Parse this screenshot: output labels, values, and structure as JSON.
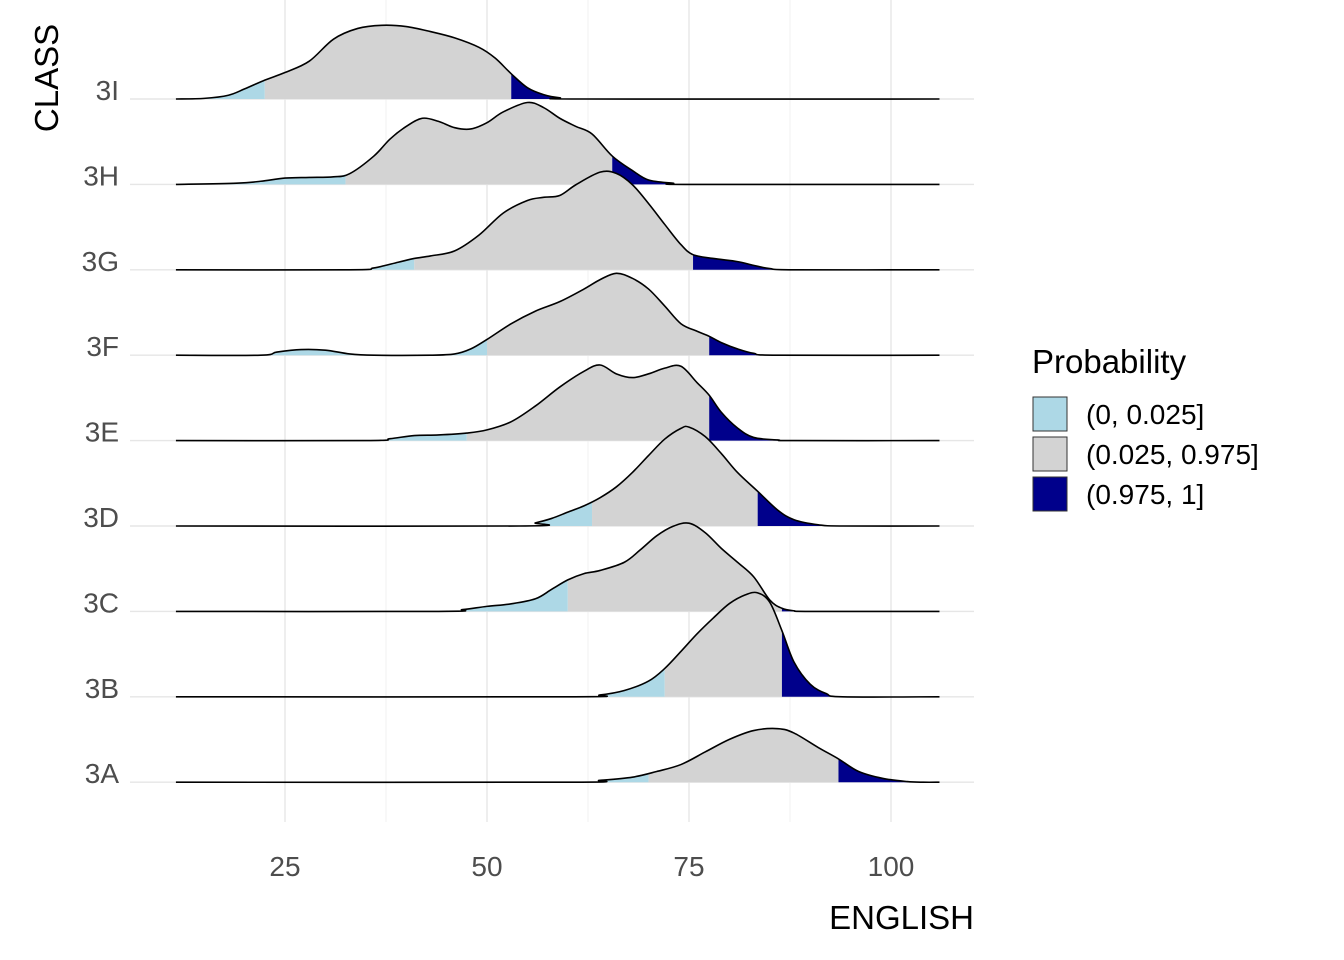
{
  "chart_data": {
    "type": "ridgeline",
    "xlabel": "ENGLISH",
    "ylabel": "CLASS",
    "xlim": [
      12,
      109
    ],
    "x_ticks": [
      25,
      50,
      75,
      100
    ],
    "x_tick_labels": [
      "25",
      "50",
      "75",
      "100"
    ],
    "grid": true,
    "legend_position": "right",
    "legend": {
      "title": "Probability",
      "items": [
        {
          "label": "(0, 0.025]",
          "color": "#ADD8E6"
        },
        {
          "label": "(0.025, 0.975]",
          "color": "#D3D3D3"
        },
        {
          "label": "(0.975, 1]",
          "color": "#00008B"
        }
      ]
    },
    "categories": [
      "3A",
      "3B",
      "3C",
      "3D",
      "3E",
      "3F",
      "3G",
      "3H",
      "3I"
    ],
    "density_range": [
      11.5,
      106
    ],
    "series": [
      {
        "name": "3A",
        "q025": 70,
        "q975": 93.5,
        "curve": [
          [
            11.5,
            0
          ],
          [
            60,
            0
          ],
          [
            64,
            0.03
          ],
          [
            68,
            0.08
          ],
          [
            71,
            0.17
          ],
          [
            74,
            0.28
          ],
          [
            77,
            0.48
          ],
          [
            80,
            0.68
          ],
          [
            83,
            0.82
          ],
          [
            86,
            0.85
          ],
          [
            88,
            0.78
          ],
          [
            91,
            0.55
          ],
          [
            93.5,
            0.37
          ],
          [
            96,
            0.17
          ],
          [
            99,
            0.06
          ],
          [
            102,
            0.01
          ],
          [
            104,
            0
          ],
          [
            106,
            0
          ]
        ]
      },
      {
        "name": "3B",
        "q025": 72,
        "q975": 86.5,
        "curve": [
          [
            11.5,
            0
          ],
          [
            60,
            0
          ],
          [
            64,
            0.03
          ],
          [
            67,
            0.1
          ],
          [
            70,
            0.25
          ],
          [
            72,
            0.45
          ],
          [
            74,
            0.72
          ],
          [
            76,
            1.0
          ],
          [
            78,
            1.25
          ],
          [
            80,
            1.48
          ],
          [
            82,
            1.62
          ],
          [
            83.5,
            1.65
          ],
          [
            85,
            1.5
          ],
          [
            86.5,
            1.05
          ],
          [
            88,
            0.55
          ],
          [
            90,
            0.2
          ],
          [
            92,
            0.05
          ],
          [
            94,
            0
          ],
          [
            106,
            0
          ]
        ]
      },
      {
        "name": "3C",
        "q025": 60,
        "q975": 86.5,
        "curve": [
          [
            11.5,
            0
          ],
          [
            44,
            0
          ],
          [
            47,
            0.03
          ],
          [
            50,
            0.08
          ],
          [
            53,
            0.12
          ],
          [
            56,
            0.2
          ],
          [
            58,
            0.35
          ],
          [
            60,
            0.5
          ],
          [
            62,
            0.6
          ],
          [
            64,
            0.65
          ],
          [
            67,
            0.78
          ],
          [
            69,
            0.98
          ],
          [
            71,
            1.2
          ],
          [
            73,
            1.35
          ],
          [
            75,
            1.4
          ],
          [
            77,
            1.25
          ],
          [
            79,
            1.0
          ],
          [
            81,
            0.78
          ],
          [
            83,
            0.55
          ],
          [
            85,
            0.18
          ],
          [
            86.5,
            0.05
          ],
          [
            88,
            0.01
          ],
          [
            90,
            0
          ],
          [
            106,
            0
          ]
        ]
      },
      {
        "name": "3D",
        "q025": 63,
        "q975": 83.5,
        "curve": [
          [
            11.5,
            0
          ],
          [
            54,
            0
          ],
          [
            56,
            0.05
          ],
          [
            58,
            0.12
          ],
          [
            60,
            0.22
          ],
          [
            62,
            0.32
          ],
          [
            64,
            0.45
          ],
          [
            66,
            0.62
          ],
          [
            68,
            0.85
          ],
          [
            70,
            1.12
          ],
          [
            72,
            1.38
          ],
          [
            74,
            1.55
          ],
          [
            75,
            1.57
          ],
          [
            77,
            1.42
          ],
          [
            79,
            1.15
          ],
          [
            81,
            0.85
          ],
          [
            83.5,
            0.55
          ],
          [
            86,
            0.25
          ],
          [
            88,
            0.1
          ],
          [
            91,
            0.02
          ],
          [
            94,
            0
          ],
          [
            106,
            0
          ]
        ]
      },
      {
        "name": "3E",
        "q025": 47.5,
        "q975": 77.5,
        "curve": [
          [
            11.5,
            0
          ],
          [
            35,
            0
          ],
          [
            38,
            0.03
          ],
          [
            41,
            0.08
          ],
          [
            44,
            0.09
          ],
          [
            47.5,
            0.12
          ],
          [
            50,
            0.17
          ],
          [
            53,
            0.3
          ],
          [
            56,
            0.55
          ],
          [
            59,
            0.85
          ],
          [
            62,
            1.1
          ],
          [
            64,
            1.2
          ],
          [
            66,
            1.06
          ],
          [
            68,
            1.0
          ],
          [
            70,
            1.06
          ],
          [
            72,
            1.15
          ],
          [
            74,
            1.18
          ],
          [
            76,
            0.92
          ],
          [
            77.5,
            0.72
          ],
          [
            79,
            0.45
          ],
          [
            81,
            0.2
          ],
          [
            83,
            0.05
          ],
          [
            86,
            0.01
          ],
          [
            88,
            0
          ],
          [
            106,
            0
          ]
        ]
      },
      {
        "name": "3F",
        "q025": 50,
        "q975": 77.5,
        "curve": [
          [
            11.5,
            0
          ],
          [
            22,
            0
          ],
          [
            24,
            0.05
          ],
          [
            27,
            0.09
          ],
          [
            30,
            0.08
          ],
          [
            33,
            0.02
          ],
          [
            36,
            0
          ],
          [
            43,
            0
          ],
          [
            46,
            0.02
          ],
          [
            48,
            0.1
          ],
          [
            50,
            0.25
          ],
          [
            53,
            0.5
          ],
          [
            56,
            0.7
          ],
          [
            59,
            0.85
          ],
          [
            62,
            1.05
          ],
          [
            64,
            1.2
          ],
          [
            66,
            1.3
          ],
          [
            68,
            1.22
          ],
          [
            70,
            1.05
          ],
          [
            72,
            0.78
          ],
          [
            74,
            0.5
          ],
          [
            76,
            0.38
          ],
          [
            77.5,
            0.3
          ],
          [
            79,
            0.2
          ],
          [
            81,
            0.1
          ],
          [
            83,
            0.03
          ],
          [
            86,
            0
          ],
          [
            106,
            0
          ]
        ]
      },
      {
        "name": "3G",
        "q025": 41,
        "q975": 75.5,
        "curve": [
          [
            11.5,
            0
          ],
          [
            33,
            0
          ],
          [
            36,
            0.03
          ],
          [
            39,
            0.12
          ],
          [
            41,
            0.18
          ],
          [
            43,
            0.22
          ],
          [
            46,
            0.3
          ],
          [
            49,
            0.55
          ],
          [
            52,
            0.9
          ],
          [
            55,
            1.1
          ],
          [
            57,
            1.15
          ],
          [
            59,
            1.18
          ],
          [
            61,
            1.35
          ],
          [
            64,
            1.55
          ],
          [
            66,
            1.53
          ],
          [
            68,
            1.35
          ],
          [
            70,
            1.05
          ],
          [
            72,
            0.72
          ],
          [
            74,
            0.4
          ],
          [
            75.5,
            0.24
          ],
          [
            78,
            0.18
          ],
          [
            81,
            0.13
          ],
          [
            83,
            0.07
          ],
          [
            85,
            0.02
          ],
          [
            88,
            0
          ],
          [
            106,
            0
          ]
        ]
      },
      {
        "name": "3H",
        "q025": 32.5,
        "q975": 65.5,
        "curve": [
          [
            11.5,
            0
          ],
          [
            19,
            0.02
          ],
          [
            22,
            0.05
          ],
          [
            25,
            0.1
          ],
          [
            28,
            0.11
          ],
          [
            31,
            0.12
          ],
          [
            33,
            0.17
          ],
          [
            36,
            0.45
          ],
          [
            38,
            0.72
          ],
          [
            40,
            0.92
          ],
          [
            42,
            1.05
          ],
          [
            44,
            1.0
          ],
          [
            46,
            0.9
          ],
          [
            48,
            0.88
          ],
          [
            50,
            0.98
          ],
          [
            52,
            1.15
          ],
          [
            55,
            1.3
          ],
          [
            57,
            1.22
          ],
          [
            59,
            1.05
          ],
          [
            61,
            0.92
          ],
          [
            63,
            0.8
          ],
          [
            65.5,
            0.45
          ],
          [
            68,
            0.22
          ],
          [
            70,
            0.07
          ],
          [
            73,
            0.02
          ],
          [
            75,
            0
          ],
          [
            106,
            0
          ]
        ]
      },
      {
        "name": "3I",
        "q025": 22.5,
        "q975": 53,
        "curve": [
          [
            11.5,
            0
          ],
          [
            15,
            0.01
          ],
          [
            18,
            0.06
          ],
          [
            20,
            0.16
          ],
          [
            22.5,
            0.3
          ],
          [
            25,
            0.42
          ],
          [
            28,
            0.6
          ],
          [
            31,
            0.95
          ],
          [
            34,
            1.12
          ],
          [
            37,
            1.17
          ],
          [
            40,
            1.15
          ],
          [
            43,
            1.07
          ],
          [
            46,
            0.97
          ],
          [
            49,
            0.82
          ],
          [
            51,
            0.65
          ],
          [
            53,
            0.4
          ],
          [
            55,
            0.18
          ],
          [
            57,
            0.07
          ],
          [
            59,
            0.02
          ],
          [
            62,
            0
          ],
          [
            106,
            0
          ]
        ]
      }
    ]
  }
}
